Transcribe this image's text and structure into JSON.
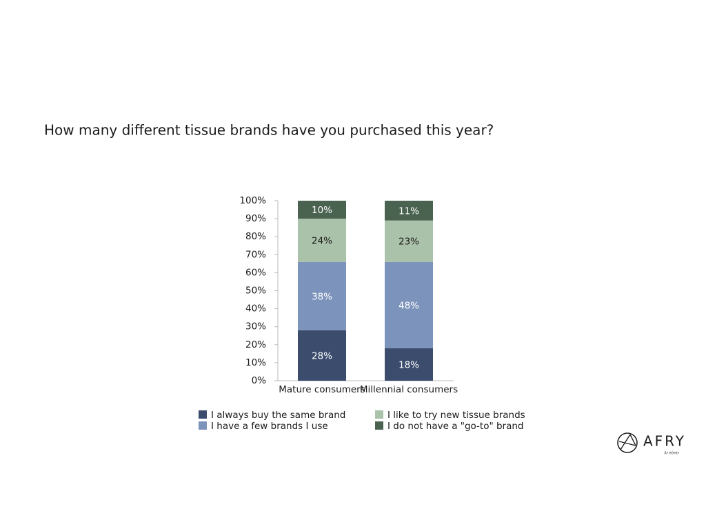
{
  "chart_data": {
    "type": "stacked-bar",
    "title": "How many different tissue brands have you purchased this year?",
    "categories": [
      "Mature consumers",
      "Millennial consumers"
    ],
    "series": [
      {
        "name": "I always buy the same brand",
        "color": "#3b4c6d",
        "values": [
          28,
          18
        ],
        "value_labels": [
          "28%",
          "18%"
        ]
      },
      {
        "name": "I have a few brands I use",
        "color": "#7c94bb",
        "values": [
          38,
          48
        ],
        "value_labels": [
          "38%",
          "48%"
        ]
      },
      {
        "name": "I like to try new tissue brands",
        "color": "#abc2aa",
        "values": [
          24,
          23
        ],
        "value_labels": [
          "24%",
          "23%"
        ]
      },
      {
        "name": "I do not have a \"go-to\" brand",
        "color": "#4a6350",
        "values": [
          10,
          11
        ],
        "value_labels": [
          "10%",
          "11%"
        ]
      }
    ],
    "ylim": [
      0,
      100
    ],
    "yticks": [
      {
        "value": 0,
        "label": "0%"
      },
      {
        "value": 10,
        "label": "10%"
      },
      {
        "value": 20,
        "label": "20%"
      },
      {
        "value": 30,
        "label": "30%"
      },
      {
        "value": 40,
        "label": "40%"
      },
      {
        "value": 50,
        "label": "50%"
      },
      {
        "value": 60,
        "label": "60%"
      },
      {
        "value": 70,
        "label": "70%"
      },
      {
        "value": 80,
        "label": "80%"
      },
      {
        "value": 90,
        "label": "90%"
      },
      {
        "value": 100,
        "label": "100%"
      }
    ],
    "grid": false
  },
  "logo": {
    "name": "AFRY",
    "tagline": "ÅF PÖYRY"
  }
}
